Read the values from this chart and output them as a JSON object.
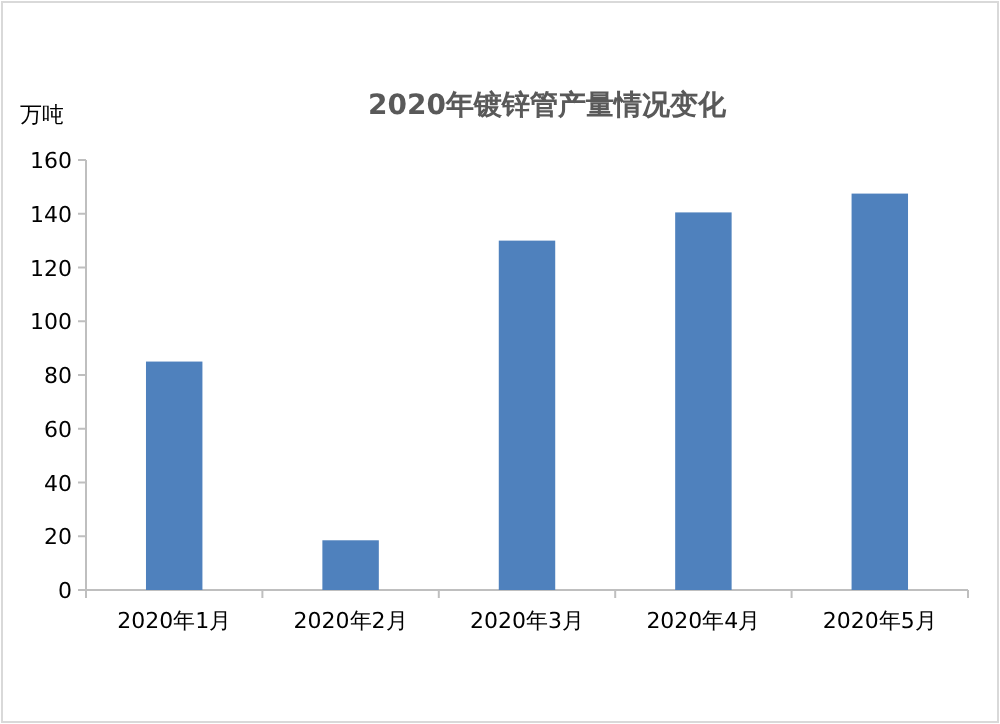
{
  "chart_data": {
    "type": "bar",
    "title": "2020年镀锌管产量情况变化",
    "ylabel": "万吨",
    "categories": [
      "2020年1月",
      "2020年2月",
      "2020年3月",
      "2020年4月",
      "2020年5月"
    ],
    "values": [
      85,
      18.5,
      130,
      140.5,
      147.5
    ],
    "color": "#4f81bd",
    "ylim": [
      0,
      160
    ],
    "yticks": [
      0,
      20,
      40,
      60,
      80,
      100,
      120,
      140,
      160
    ],
    "grid": false
  }
}
